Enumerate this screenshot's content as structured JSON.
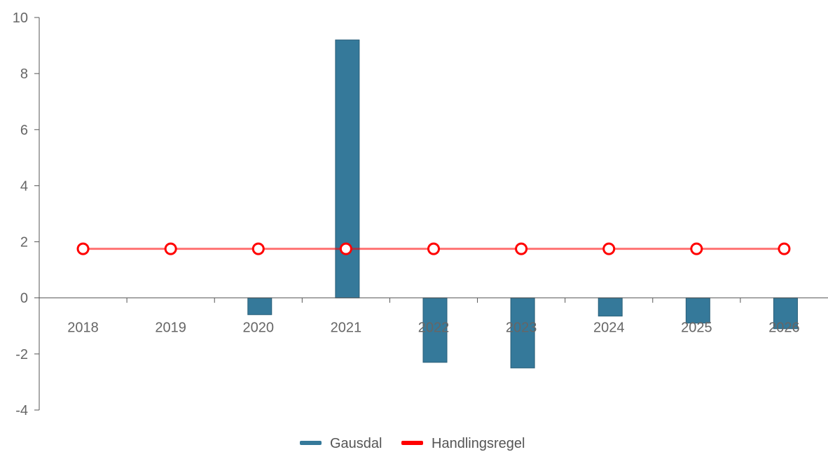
{
  "chart_data": {
    "type": "bar",
    "categories": [
      "2018",
      "2019",
      "2020",
      "2021",
      "2022",
      "2023",
      "2024",
      "2025",
      "2026"
    ],
    "series": [
      {
        "name": "Gausdal",
        "type": "bar",
        "color": "#35799a",
        "values": [
          0,
          0,
          -0.6,
          9.2,
          -2.3,
          -2.5,
          -0.65,
          -0.9,
          -1.1
        ]
      },
      {
        "name": "Handlingsregel",
        "type": "line",
        "color": "#ff0000",
        "values": [
          1.75,
          1.75,
          1.75,
          1.75,
          1.75,
          1.75,
          1.75,
          1.75,
          1.75
        ]
      }
    ],
    "yticks": [
      10,
      8,
      6,
      4,
      2,
      0,
      -2,
      -4
    ],
    "ylim": [
      -4,
      10
    ],
    "grid": false,
    "legend_position": "bottom-center"
  }
}
